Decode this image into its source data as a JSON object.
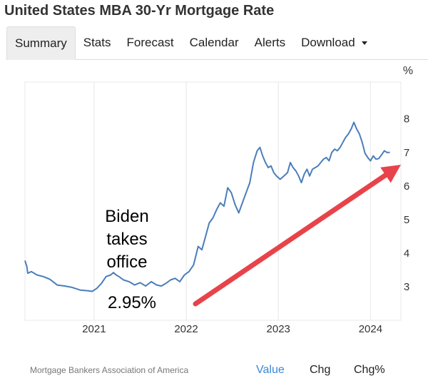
{
  "page": {
    "title": "United States MBA 30-Yr Mortgage Rate"
  },
  "tabs": [
    {
      "label": "Summary",
      "active": true
    },
    {
      "label": "Stats",
      "active": false
    },
    {
      "label": "Forecast",
      "active": false
    },
    {
      "label": "Calendar",
      "active": false
    },
    {
      "label": "Alerts",
      "active": false
    },
    {
      "label": "Download",
      "active": false,
      "icon": "chevron-down-icon"
    }
  ],
  "footer": {
    "source": "Mortgage Bankers Association of America",
    "value_tab": "Value",
    "chg_tab": "Chg",
    "chgpct_tab": "Chg%",
    "active_tab": "Value"
  },
  "colors": {
    "line": "#4a7ebb",
    "arrow": "#e8434a",
    "active_tab": "#3a87d6"
  },
  "chart_data": {
    "type": "line",
    "ylabel": "%",
    "ylim": [
      2.0,
      9.1
    ],
    "xlim": [
      2020.25,
      2024.33
    ],
    "y_ticks": [
      3,
      4,
      5,
      6,
      7,
      8
    ],
    "x_ticks": [
      "2021",
      "2022",
      "2023",
      "2024"
    ],
    "grid": "vertical",
    "series": [
      {
        "x": [
          2020.25,
          2020.27,
          2020.28,
          2020.32,
          2020.38,
          2020.45,
          2020.52,
          2020.6,
          2020.68,
          2020.76,
          2020.85,
          2020.93,
          2020.98,
          2021.03,
          2021.08,
          2021.13,
          2021.18,
          2021.21,
          2021.24,
          2021.27,
          2021.32,
          2021.38,
          2021.44,
          2021.5,
          2021.56,
          2021.62,
          2021.68,
          2021.73,
          2021.78,
          2021.83,
          2021.88,
          2021.93,
          2021.98,
          2022.03,
          2022.08,
          2022.13,
          2022.17,
          2022.21,
          2022.25,
          2022.29,
          2022.33,
          2022.37,
          2022.41,
          2022.45,
          2022.49,
          2022.53,
          2022.57,
          2022.61,
          2022.65,
          2022.69,
          2022.73,
          2022.77,
          2022.8,
          2022.83,
          2022.86,
          2022.89,
          2022.92,
          2022.95,
          2022.98,
          2023.02,
          2023.06,
          2023.1,
          2023.13,
          2023.16,
          2023.19,
          2023.22,
          2023.25,
          2023.28,
          2023.31,
          2023.34,
          2023.37,
          2023.4,
          2023.43,
          2023.46,
          2023.49,
          2023.52,
          2023.55,
          2023.58,
          2023.61,
          2023.64,
          2023.67,
          2023.7,
          2023.73,
          2023.76,
          2023.79,
          2023.82,
          2023.85,
          2023.88,
          2023.91,
          2023.94,
          2023.97,
          2024.0,
          2024.03,
          2024.06,
          2024.09,
          2024.12,
          2024.15,
          2024.18,
          2024.21
        ],
        "values": [
          3.78,
          3.6,
          3.4,
          3.45,
          3.35,
          3.3,
          3.22,
          3.05,
          3.02,
          2.98,
          2.9,
          2.88,
          2.86,
          2.95,
          3.1,
          3.3,
          3.35,
          3.42,
          3.35,
          3.3,
          3.2,
          3.15,
          3.05,
          3.12,
          3.02,
          3.15,
          3.05,
          3.02,
          3.1,
          3.2,
          3.25,
          3.15,
          3.35,
          3.45,
          3.65,
          4.2,
          4.1,
          4.5,
          4.9,
          5.05,
          5.3,
          5.5,
          5.4,
          5.95,
          5.8,
          5.45,
          5.2,
          5.5,
          5.8,
          6.1,
          6.7,
          7.05,
          7.15,
          6.9,
          6.7,
          6.55,
          6.6,
          6.4,
          6.3,
          6.2,
          6.3,
          6.4,
          6.7,
          6.55,
          6.45,
          6.3,
          6.1,
          6.35,
          6.5,
          6.3,
          6.5,
          6.55,
          6.6,
          6.7,
          6.8,
          6.85,
          6.75,
          7.0,
          7.1,
          7.05,
          7.15,
          7.3,
          7.45,
          7.55,
          7.7,
          7.9,
          7.7,
          7.55,
          7.3,
          6.98,
          6.85,
          6.75,
          6.9,
          6.8,
          6.82,
          6.93,
          7.05,
          7.0,
          7.0
        ]
      }
    ],
    "annotations": [
      {
        "text_lines": [
          "Biden",
          "takes",
          "office"
        ]
      },
      {
        "text": "2.95%"
      }
    ]
  }
}
